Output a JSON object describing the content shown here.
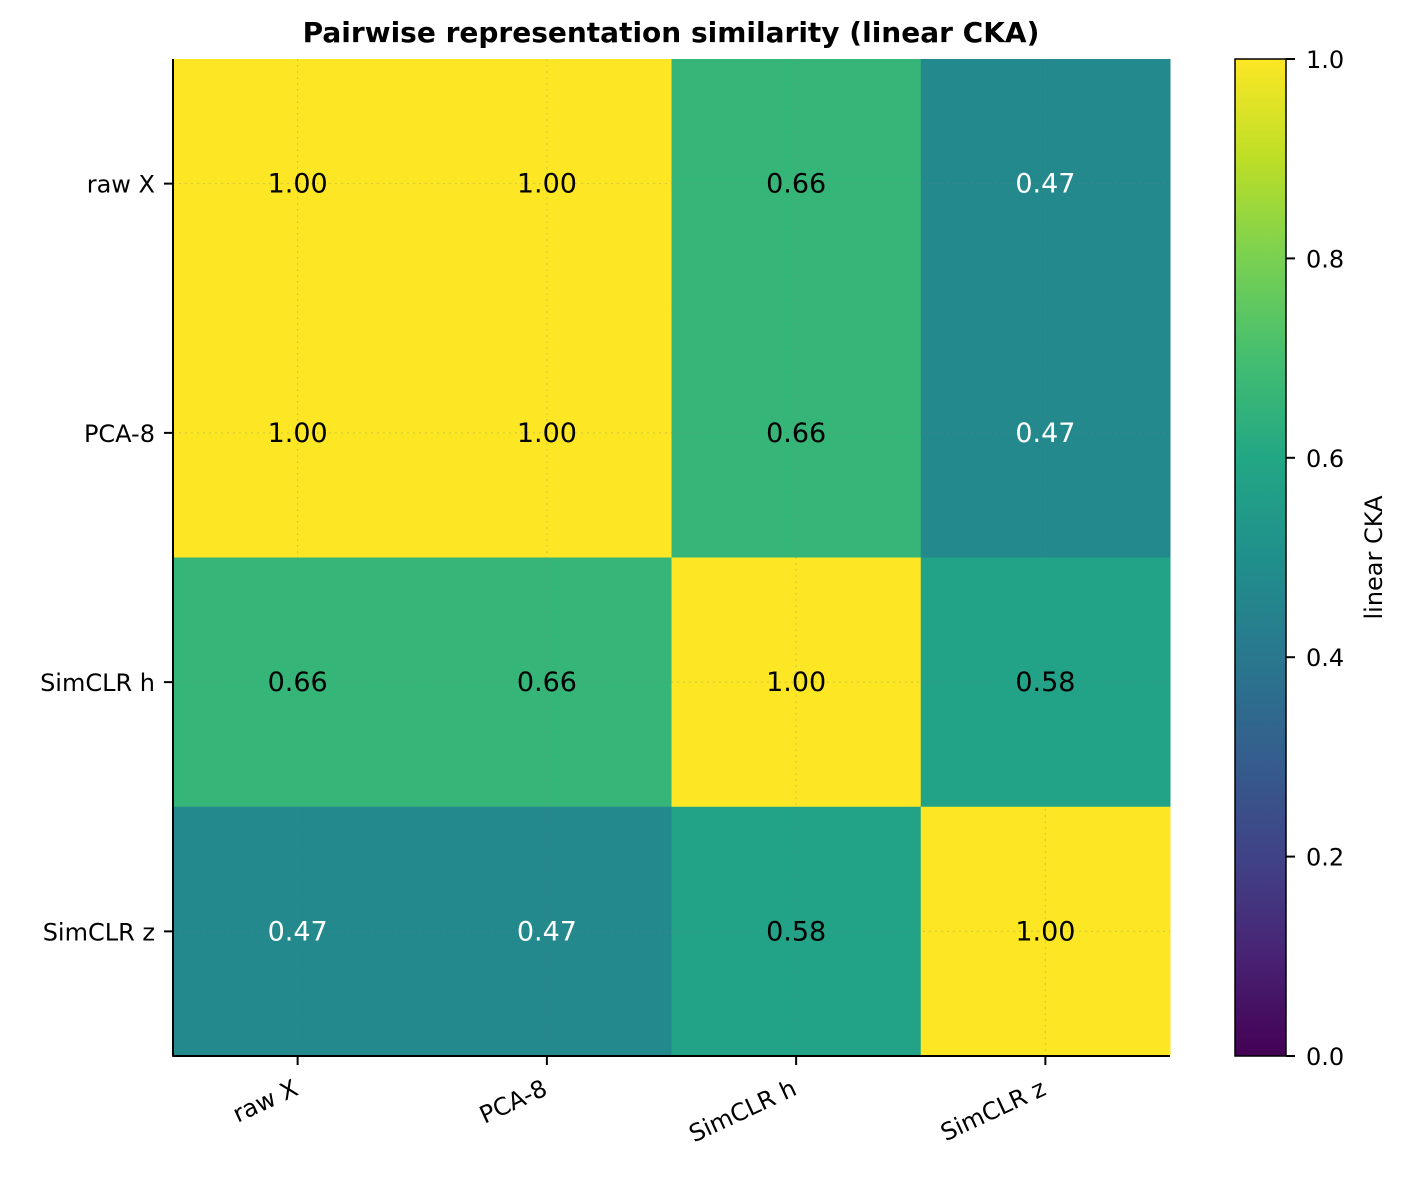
{
  "chart_data": {
    "type": "heatmap",
    "title": "Pairwise representation similarity (linear CKA)",
    "x_categories": [
      "raw X",
      "PCA-8",
      "SimCLR h",
      "SimCLR z"
    ],
    "y_categories": [
      "raw X",
      "PCA-8",
      "SimCLR h",
      "SimCLR z"
    ],
    "values": [
      [
        1.0,
        1.0,
        0.66,
        0.47
      ],
      [
        1.0,
        1.0,
        0.66,
        0.47
      ],
      [
        0.66,
        0.66,
        1.0,
        0.58
      ],
      [
        0.47,
        0.47,
        0.58,
        1.0
      ]
    ],
    "value_format": "2 decimals",
    "colormap": "viridis",
    "vmin": 0.0,
    "vmax": 1.0,
    "colorbar": {
      "label": "linear CKA",
      "ticks": [
        "0.0",
        "0.2",
        "0.4",
        "0.6",
        "0.8",
        "1.0"
      ]
    },
    "grid": "dotted",
    "x_tick_rotation_deg": -25
  }
}
